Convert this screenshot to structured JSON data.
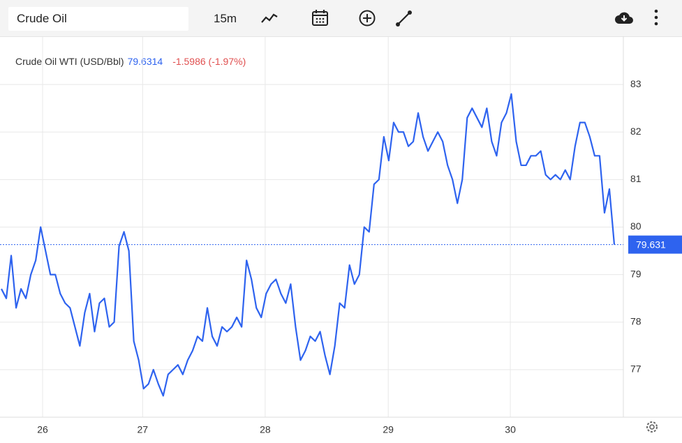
{
  "toolbar": {
    "search": "Crude Oil",
    "interval": "15m"
  },
  "chart_data": {
    "type": "line",
    "title": "Crude Oil WTI (USD/Bbl)",
    "price_text": "79.6314",
    "change_text": "-1.5986 (-1.97%)",
    "series": [
      {
        "name": "Crude Oil WTI (USD/Bbl)",
        "color": "#2e63ef",
        "values": [
          78.7,
          78.5,
          79.4,
          78.3,
          78.7,
          78.5,
          79.0,
          79.3,
          80.0,
          79.5,
          79.0,
          79.0,
          78.6,
          78.4,
          78.3,
          77.9,
          77.5,
          78.2,
          78.6,
          77.8,
          78.4,
          78.5,
          77.9,
          78.0,
          79.6,
          79.9,
          79.5,
          77.6,
          77.2,
          76.6,
          76.7,
          77.0,
          76.7,
          76.45,
          76.9,
          77.0,
          77.1,
          76.9,
          77.2,
          77.4,
          77.7,
          77.6,
          78.3,
          77.7,
          77.5,
          77.9,
          77.8,
          77.9,
          78.1,
          77.9,
          79.3,
          78.9,
          78.3,
          78.1,
          78.6,
          78.8,
          78.9,
          78.6,
          78.4,
          78.8,
          77.9,
          77.2,
          77.4,
          77.7,
          77.6,
          77.8,
          77.3,
          76.9,
          77.5,
          78.4,
          78.3,
          79.2,
          78.8,
          79.0,
          80.0,
          79.9,
          80.9,
          81.0,
          81.9,
          81.4,
          82.2,
          82.0,
          82.0,
          81.7,
          81.8,
          82.4,
          81.9,
          81.6,
          81.8,
          82.0,
          81.8,
          81.3,
          81.0,
          80.5,
          81.0,
          82.3,
          82.5,
          82.3,
          82.1,
          82.5,
          81.8,
          81.5,
          82.2,
          82.4,
          82.8,
          81.8,
          81.3,
          81.3,
          81.5,
          81.5,
          81.6,
          81.1,
          81.0,
          81.1,
          81.0,
          81.2,
          81.0,
          81.7,
          82.2,
          82.2,
          81.9,
          81.5,
          81.5,
          80.3,
          80.8,
          79.6314
        ]
      }
    ],
    "xlim": [
      0,
      125
    ],
    "xticks": [
      {
        "value": 8.4,
        "label": "26"
      },
      {
        "value": 28.8,
        "label": "27"
      },
      {
        "value": 53.8,
        "label": "28"
      },
      {
        "value": 78.9,
        "label": "29"
      },
      {
        "value": 103.8,
        "label": "30"
      }
    ],
    "ylim": [
      76,
      84
    ],
    "yticks": [
      77,
      78,
      79,
      80,
      81,
      82,
      83
    ],
    "price_marker": {
      "value": 79.6314,
      "label": "79.631"
    },
    "grid": true
  }
}
